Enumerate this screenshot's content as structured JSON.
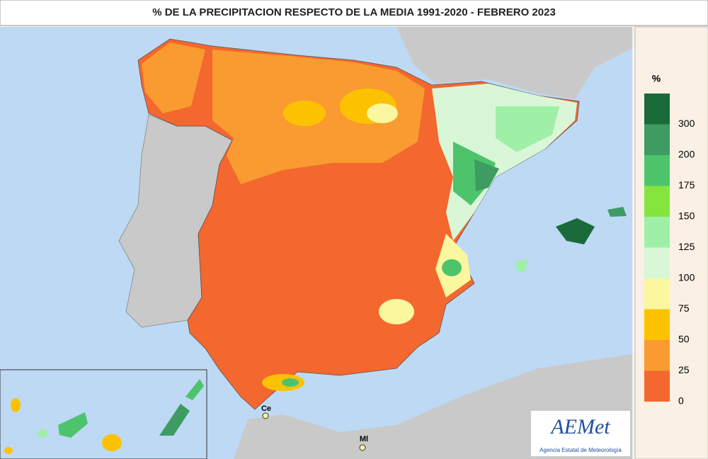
{
  "title": "% DE LA PRECIPITACION RESPECTO DE LA MEDIA 1991-2020 - FEBRERO 2023",
  "legend": {
    "unit": "%",
    "ticks": [
      300,
      200,
      175,
      150,
      125,
      100,
      75,
      50,
      25,
      0
    ],
    "colors": [
      "#1b6b3a",
      "#3e9b62",
      "#4dc46c",
      "#86e43c",
      "#9ff0a6",
      "#d9f7d6",
      "#fbf79e",
      "#fcc200",
      "#f99b30",
      "#f4672e"
    ]
  },
  "places": [
    "Ce",
    "Ml"
  ],
  "logo": {
    "name": "AEMet",
    "subtitle": "Agencia Estatal de Meteorología"
  }
}
